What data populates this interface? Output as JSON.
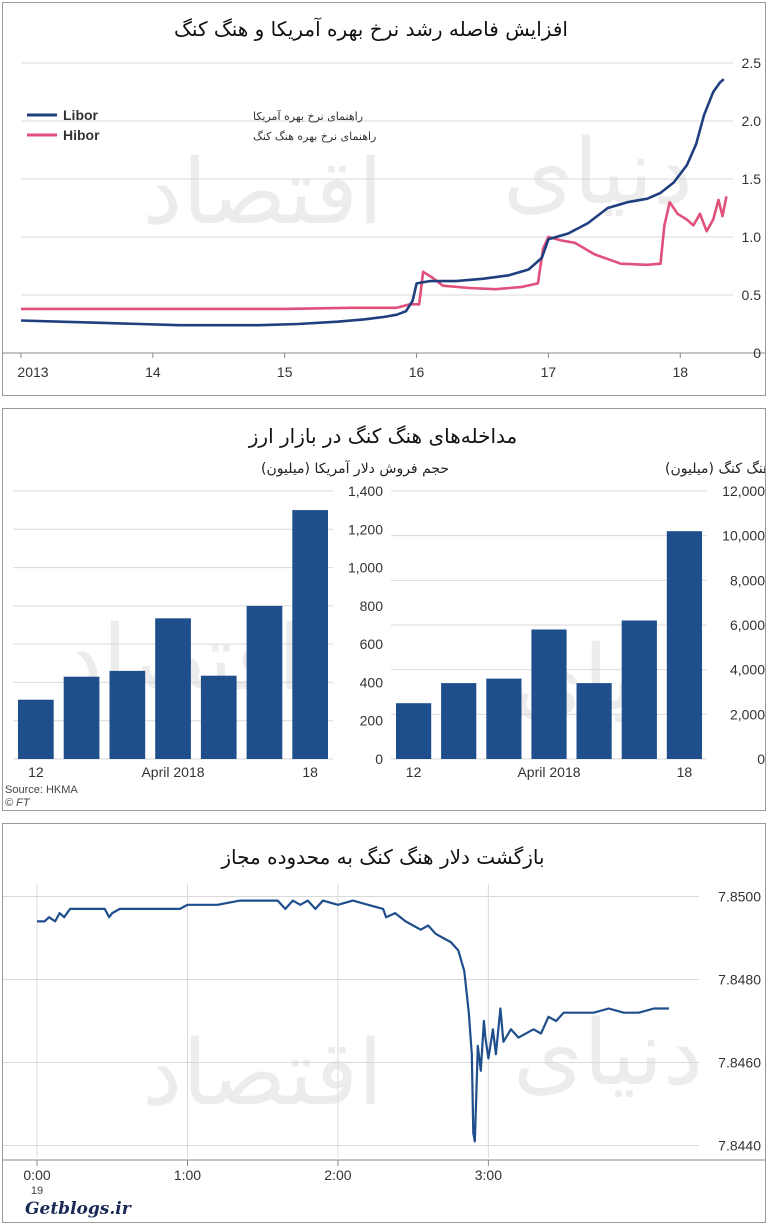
{
  "chart_data": [
    {
      "type": "line",
      "title": "افزایش فاصله رشد نرخ بهره آمریکا و هنگ کنگ",
      "x_ticks": [
        "2013",
        "14",
        "15",
        "16",
        "17",
        "18"
      ],
      "y_ticks": [
        "0",
        "0.5",
        "1.0",
        "1.5",
        "2.0",
        "2.5"
      ],
      "ylim": [
        0,
        2.5
      ],
      "xlim": [
        2013.0,
        2018.4
      ],
      "legend_position": "top-left",
      "colors": {
        "libor": "#1f3f7f",
        "hibor": "#e0507a"
      },
      "series": [
        {
          "name": "Libor",
          "desc": "راهنمای نرخ بهره آمریکا",
          "points": [
            [
              2013.0,
              0.28
            ],
            [
              2013.3,
              0.27
            ],
            [
              2013.6,
              0.26
            ],
            [
              2013.9,
              0.25
            ],
            [
              2014.2,
              0.24
            ],
            [
              2014.5,
              0.24
            ],
            [
              2014.8,
              0.24
            ],
            [
              2015.1,
              0.25
            ],
            [
              2015.4,
              0.27
            ],
            [
              2015.6,
              0.29
            ],
            [
              2015.75,
              0.31
            ],
            [
              2015.85,
              0.33
            ],
            [
              2015.92,
              0.36
            ],
            [
              2015.97,
              0.45
            ],
            [
              2016.0,
              0.6
            ],
            [
              2016.1,
              0.62
            ],
            [
              2016.3,
              0.62
            ],
            [
              2016.5,
              0.64
            ],
            [
              2016.7,
              0.67
            ],
            [
              2016.85,
              0.72
            ],
            [
              2016.95,
              0.82
            ],
            [
              2017.0,
              0.98
            ],
            [
              2017.15,
              1.03
            ],
            [
              2017.3,
              1.12
            ],
            [
              2017.45,
              1.25
            ],
            [
              2017.6,
              1.3
            ],
            [
              2017.75,
              1.33
            ],
            [
              2017.85,
              1.38
            ],
            [
              2017.95,
              1.47
            ],
            [
              2018.05,
              1.62
            ],
            [
              2018.12,
              1.8
            ],
            [
              2018.18,
              2.05
            ],
            [
              2018.25,
              2.25
            ],
            [
              2018.3,
              2.33
            ],
            [
              2018.33,
              2.36
            ]
          ]
        },
        {
          "name": "Hibor",
          "desc": "راهنمای نرخ بهره هنگ کنگ",
          "points": [
            [
              2013.0,
              0.38
            ],
            [
              2013.5,
              0.38
            ],
            [
              2014.0,
              0.38
            ],
            [
              2014.5,
              0.38
            ],
            [
              2015.0,
              0.38
            ],
            [
              2015.5,
              0.39
            ],
            [
              2015.85,
              0.39
            ],
            [
              2015.95,
              0.42
            ],
            [
              2016.02,
              0.42
            ],
            [
              2016.05,
              0.7
            ],
            [
              2016.12,
              0.65
            ],
            [
              2016.2,
              0.58
            ],
            [
              2016.4,
              0.56
            ],
            [
              2016.6,
              0.55
            ],
            [
              2016.8,
              0.57
            ],
            [
              2016.92,
              0.6
            ],
            [
              2016.96,
              0.9
            ],
            [
              2017.0,
              1.0
            ],
            [
              2017.1,
              0.97
            ],
            [
              2017.2,
              0.95
            ],
            [
              2017.35,
              0.85
            ],
            [
              2017.55,
              0.77
            ],
            [
              2017.75,
              0.76
            ],
            [
              2017.85,
              0.77
            ],
            [
              2017.88,
              1.1
            ],
            [
              2017.92,
              1.3
            ],
            [
              2017.98,
              1.2
            ],
            [
              2018.05,
              1.15
            ],
            [
              2018.1,
              1.1
            ],
            [
              2018.15,
              1.2
            ],
            [
              2018.2,
              1.05
            ],
            [
              2018.25,
              1.15
            ],
            [
              2018.29,
              1.32
            ],
            [
              2018.32,
              1.18
            ],
            [
              2018.35,
              1.35
            ]
          ]
        }
      ]
    },
    {
      "type": "bar",
      "title": "مداخله‌های هنگ کنگ در بازار ارز",
      "subtitle": "حجم فروش دلار آمریکا (میلیون)",
      "categories": [
        "12",
        "",
        "",
        "April 2018",
        "",
        "",
        "18"
      ],
      "values": [
        310,
        430,
        460,
        735,
        435,
        800,
        1300
      ],
      "ylim": [
        0,
        1400
      ],
      "y_ticks": [
        "0",
        "200",
        "400",
        "600",
        "800",
        "1,000",
        "1,200",
        "1,400"
      ],
      "bar_color": "#1f4e8c",
      "source": "Source: HKMA",
      "credit": "© FT"
    },
    {
      "type": "bar",
      "subtitle": "حجم خرید دلار هنگ کنگ (میلیون)",
      "categories": [
        "12",
        "",
        "",
        "April 2018",
        "",
        "",
        "18"
      ],
      "values": [
        2500,
        3400,
        3600,
        5800,
        3400,
        6200,
        10200
      ],
      "ylim": [
        0,
        12000
      ],
      "y_ticks": [
        "0",
        "2,000",
        "4,000",
        "6,000",
        "8,000",
        "10,000",
        "12,000"
      ],
      "bar_color": "#1f4e8c"
    },
    {
      "type": "line",
      "title": "بازگشت دلار هنگ کنگ به محدوده مجاز",
      "x_ticks": [
        "0:00",
        "1:00",
        "2:00",
        "3:00"
      ],
      "x_sub": "19",
      "y_ticks": [
        "7.8440",
        "7.8460",
        "7.8480",
        "7.8500"
      ],
      "ylim": [
        7.8437,
        7.8503
      ],
      "xlim": [
        -0.04,
        4.4
      ],
      "color": "#1f4e8c",
      "series": [
        {
          "name": "",
          "points": [
            [
              0.0,
              7.8494
            ],
            [
              0.05,
              7.8494
            ],
            [
              0.08,
              7.8495
            ],
            [
              0.12,
              7.8494
            ],
            [
              0.15,
              7.8496
            ],
            [
              0.18,
              7.8495
            ],
            [
              0.22,
              7.8497
            ],
            [
              0.3,
              7.8497
            ],
            [
              0.38,
              7.8497
            ],
            [
              0.45,
              7.8497
            ],
            [
              0.48,
              7.8495
            ],
            [
              0.5,
              7.8496
            ],
            [
              0.55,
              7.8497
            ],
            [
              0.7,
              7.8497
            ],
            [
              0.85,
              7.8497
            ],
            [
              0.95,
              7.8497
            ],
            [
              1.0,
              7.8498
            ],
            [
              1.1,
              7.8498
            ],
            [
              1.2,
              7.8498
            ],
            [
              1.35,
              7.8499
            ],
            [
              1.5,
              7.8499
            ],
            [
              1.6,
              7.8499
            ],
            [
              1.65,
              7.8497
            ],
            [
              1.7,
              7.8499
            ],
            [
              1.75,
              7.8498
            ],
            [
              1.8,
              7.8499
            ],
            [
              1.85,
              7.8497
            ],
            [
              1.9,
              7.8499
            ],
            [
              2.0,
              7.8498
            ],
            [
              2.1,
              7.8499
            ],
            [
              2.2,
              7.8498
            ],
            [
              2.3,
              7.8497
            ],
            [
              2.32,
              7.8495
            ],
            [
              2.38,
              7.8496
            ],
            [
              2.45,
              7.8494
            ],
            [
              2.5,
              7.8493
            ],
            [
              2.55,
              7.8492
            ],
            [
              2.6,
              7.8493
            ],
            [
              2.65,
              7.8491
            ],
            [
              2.7,
              7.849
            ],
            [
              2.75,
              7.8489
            ],
            [
              2.8,
              7.8487
            ],
            [
              2.84,
              7.8482
            ],
            [
              2.87,
              7.8472
            ],
            [
              2.89,
              7.8462
            ],
            [
              2.9,
              7.8443
            ],
            [
              2.91,
              7.8441
            ],
            [
              2.92,
              7.8452
            ],
            [
              2.93,
              7.8464
            ],
            [
              2.95,
              7.8458
            ],
            [
              2.97,
              7.847
            ],
            [
              2.98,
              7.8466
            ],
            [
              3.0,
              7.8461
            ],
            [
              3.03,
              7.8468
            ],
            [
              3.05,
              7.8462
            ],
            [
              3.08,
              7.8473
            ],
            [
              3.1,
              7.8465
            ],
            [
              3.15,
              7.8468
            ],
            [
              3.2,
              7.8466
            ],
            [
              3.3,
              7.8468
            ],
            [
              3.35,
              7.8467
            ],
            [
              3.4,
              7.8471
            ],
            [
              3.45,
              7.847
            ],
            [
              3.5,
              7.8472
            ],
            [
              3.6,
              7.8472
            ],
            [
              3.7,
              7.8472
            ],
            [
              3.8,
              7.8473
            ],
            [
              3.9,
              7.8472
            ],
            [
              4.0,
              7.8472
            ],
            [
              4.1,
              7.8473
            ],
            [
              4.2,
              7.8473
            ]
          ]
        }
      ]
    }
  ],
  "watermark": {
    "words": [
      "دنیای",
      "اقتصاد"
    ]
  },
  "footer_logo": "Getblogs.ir"
}
